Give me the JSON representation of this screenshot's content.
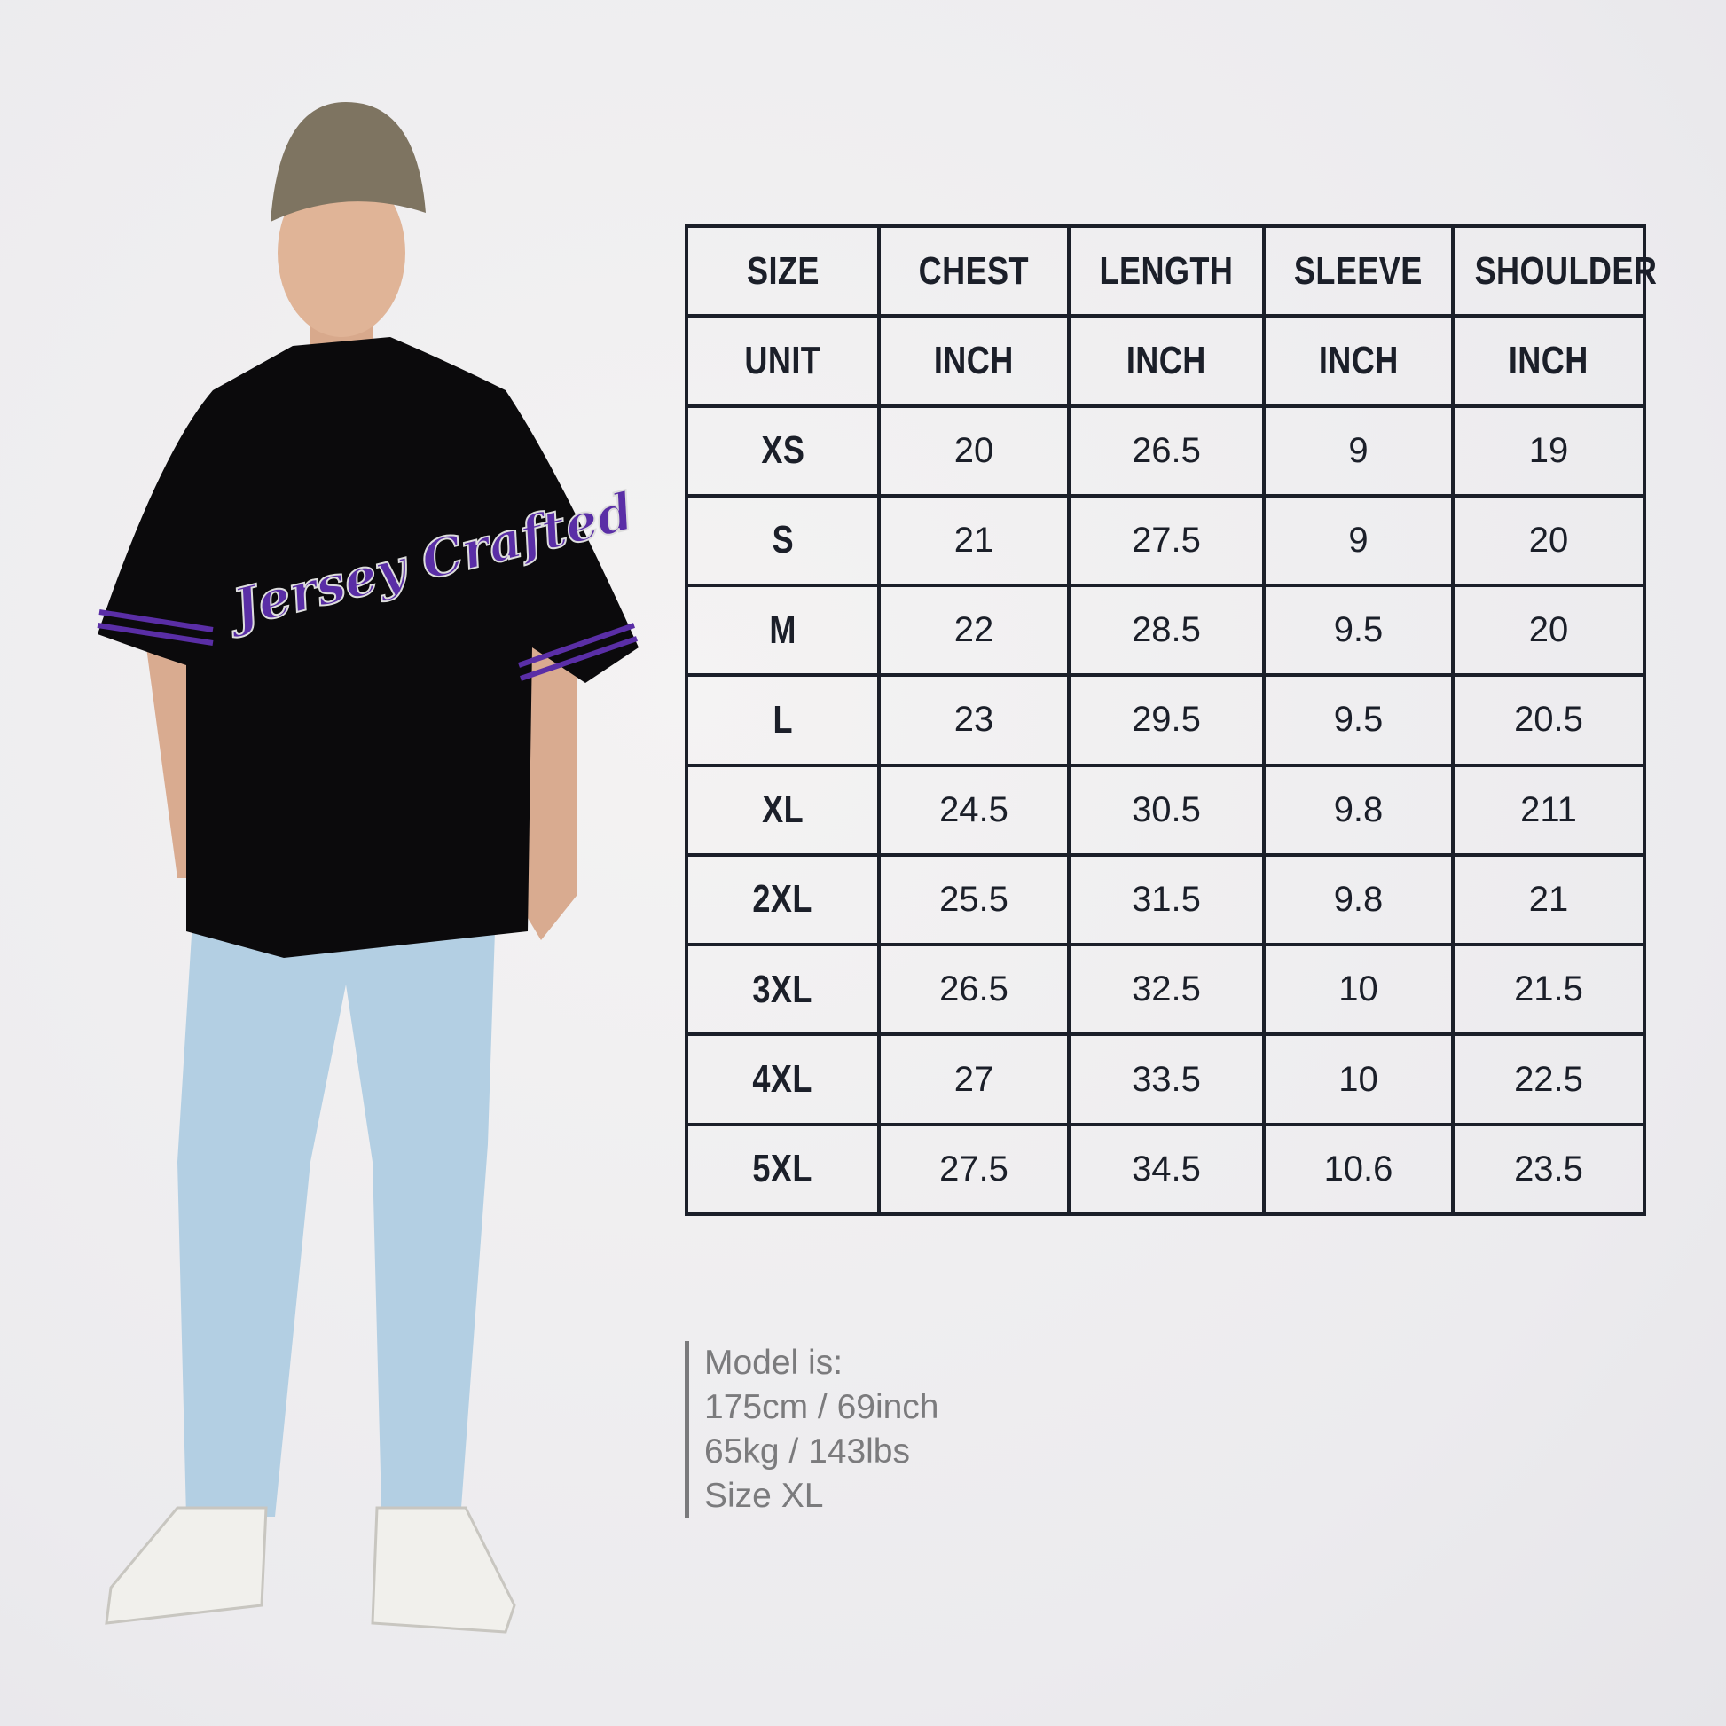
{
  "size_chart": {
    "headers": [
      "SIZE",
      "CHEST",
      "LENGTH",
      "SLEEVE",
      "SHOULDER"
    ],
    "units": [
      "UNIT",
      "INCH",
      "INCH",
      "INCH",
      "INCH"
    ],
    "rows": [
      [
        "XS",
        "20",
        "26.5",
        "9",
        "19"
      ],
      [
        "S",
        "21",
        "27.5",
        "9",
        "20"
      ],
      [
        "M",
        "22",
        "28.5",
        "9.5",
        "20"
      ],
      [
        "L",
        "23",
        "29.5",
        "9.5",
        "20.5"
      ],
      [
        "XL",
        "24.5",
        "30.5",
        "9.8",
        "211"
      ],
      [
        "2XL",
        "25.5",
        "31.5",
        "9.8",
        "21"
      ],
      [
        "3XL",
        "26.5",
        "32.5",
        "10",
        "21.5"
      ],
      [
        "4XL",
        "27",
        "33.5",
        "10",
        "22.5"
      ],
      [
        "5XL",
        "27.5",
        "34.5",
        "10.6",
        "23.5"
      ]
    ]
  },
  "model_info": {
    "lines": [
      "Model is:",
      "175cm / 69inch",
      "65kg / 143lbs",
      "Size XL"
    ]
  },
  "jersey_logo": "Jersey Crafted",
  "colors": {
    "jersey": "#0b0a0c",
    "accent": "#5a2ea6",
    "table_border": "#1b1f29",
    "info_text": "#7b7b7d"
  }
}
